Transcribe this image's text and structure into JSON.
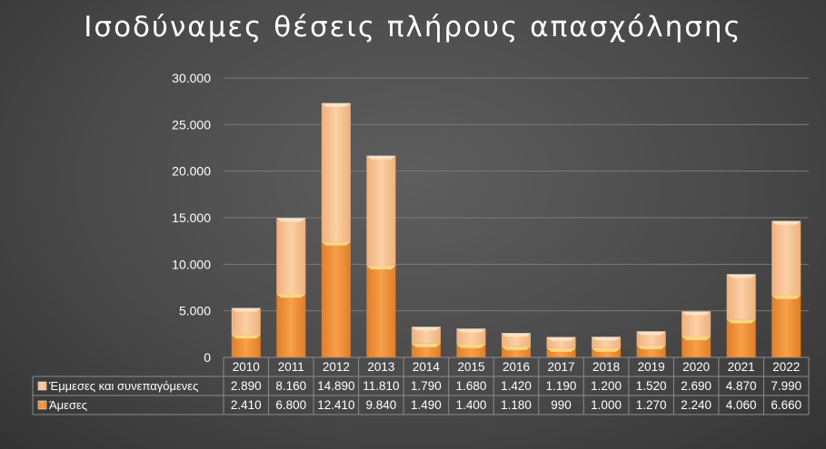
{
  "chart_data": {
    "type": "bar",
    "stacked": true,
    "title": "Ισοδύναμες θέσεις πλήρους απασχόλησης",
    "categories": [
      "2010",
      "2011",
      "2012",
      "2013",
      "2014",
      "2015",
      "2016",
      "2017",
      "2018",
      "2019",
      "2020",
      "2021",
      "2022"
    ],
    "series": [
      {
        "name": "Άμεσες",
        "values": [
          2410,
          6800,
          12410,
          9840,
          1490,
          1400,
          1180,
          990,
          1000,
          1270,
          2240,
          4060,
          6660
        ],
        "labels": [
          "2.410",
          "6.800",
          "12.410",
          "9.840",
          "1.490",
          "1.400",
          "1.180",
          "990",
          "1.000",
          "1.270",
          "2.240",
          "4.060",
          "6.660"
        ],
        "color": "#f0913a"
      },
      {
        "name": "Έμμεσες και συνεπαγόμενες",
        "values": [
          2890,
          8160,
          14890,
          11810,
          1790,
          1680,
          1420,
          1190,
          1200,
          1520,
          2690,
          4870,
          7990
        ],
        "labels": [
          "2.890",
          "8.160",
          "14.890",
          "11.810",
          "1.790",
          "1.680",
          "1.420",
          "1.190",
          "1.200",
          "1.520",
          "2.690",
          "4.870",
          "7.990"
        ],
        "color": "#f5be8c"
      }
    ],
    "ylim": [
      0,
      30000
    ],
    "yticks": [
      0,
      5000,
      10000,
      15000,
      20000,
      25000,
      30000
    ],
    "ytick_labels": [
      "0",
      "5.000",
      "10.000",
      "15.000",
      "20.000",
      "25.000",
      "30.000"
    ],
    "grid": true,
    "legend": "data-table-left"
  }
}
